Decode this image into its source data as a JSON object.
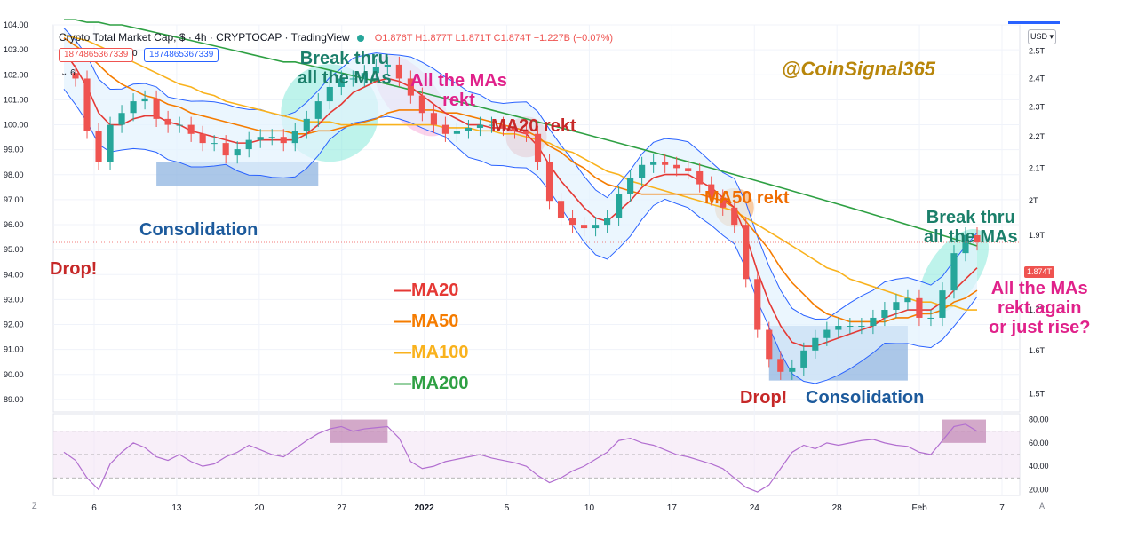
{
  "header": {
    "title": "Crypto Total Market Cap, $ · 4h · CRYPTOCAP · TradingView",
    "ohlc": {
      "o": "O1.876T",
      "h": "H1.877T",
      "l": "L1.871T",
      "c": "C1.874T",
      "chg": "−1.227B (−0.07%)"
    },
    "pill_left": "1874865367339",
    "pill_mid": "0",
    "pill_right": "1874865367339",
    "collapse": "⌄ 6"
  },
  "currency_button": "USD ▾",
  "last_price_label": "1.874T",
  "corner_left": "Z",
  "corner_right": "A",
  "annotations": {
    "handle": "@CoinSignal365",
    "break_thru_1": [
      "Break thru",
      "all the MAs"
    ],
    "all_mas_rekt": [
      "All the MAs",
      "rekt"
    ],
    "ma20_rekt": "MA20 rekt",
    "ma50_rekt": "MA50 rekt",
    "break_thru_2": [
      "Break thru",
      "all the MAs"
    ],
    "question": [
      "All the MAs",
      "rekt again",
      "or just rise?"
    ],
    "consolidation_1": "Consolidation",
    "consolidation_2": "Consolidation",
    "drop_1": "Drop!",
    "drop_2": "Drop!"
  },
  "legend": [
    {
      "label": "—MA20",
      "color": "#e53935"
    },
    {
      "label": "—MA50",
      "color": "#f57c00"
    },
    {
      "label": "—MA100",
      "color": "#f9b21d"
    },
    {
      "label": "—MA200",
      "color": "#2ea043"
    }
  ],
  "colors": {
    "up": "#26a69a",
    "down": "#ef5350",
    "bollinger": "#2962ff",
    "bollinger_fill": "#e3f2fd",
    "rsi": "#b26fd0",
    "rsi_band": "#f3e5f5",
    "handle": "#b8860b",
    "annotation_green": "#1b7f6a",
    "annotation_pink": "#e0218a",
    "annotation_red": "#c62828",
    "annotation_orange": "#ef6c00",
    "annotation_blue": "#1c5a9c"
  },
  "chart_data": [
    {
      "type": "line",
      "subtype": "candlestick",
      "title": "Crypto Total Market Cap, $ · 4h · CRYPTOCAP",
      "x_ticks": [
        "6",
        "13",
        "20",
        "27",
        "2022",
        "5",
        "10",
        "17",
        "24",
        "28",
        "Feb",
        "7"
      ],
      "y_left_ticks": [
        "104.00",
        "103.00",
        "102.00",
        "101.00",
        "100.00",
        "99.00",
        "98.00",
        "97.00",
        "96.00",
        "95.00",
        "94.00",
        "93.00",
        "92.00",
        "91.00",
        "90.00",
        "89.00"
      ],
      "y_left_range": [
        88.5,
        104.0
      ],
      "y_right_ticks": [
        "2.5T",
        "2.4T",
        "2.3T",
        "2.2T",
        "2.1T",
        "2T",
        "1.9T",
        "1.8T",
        "1.7T",
        "1.6T",
        "1.5T"
      ],
      "y_right_range": [
        1.46,
        2.6
      ],
      "y_scale": "log",
      "grid": true,
      "price_series_T": [
        2.42,
        2.4,
        2.22,
        2.12,
        2.24,
        2.28,
        2.32,
        2.33,
        2.26,
        2.24,
        2.24,
        2.21,
        2.18,
        2.18,
        2.14,
        2.16,
        2.19,
        2.2,
        2.2,
        2.18,
        2.22,
        2.26,
        2.32,
        2.37,
        2.4,
        2.4,
        2.42,
        2.44,
        2.45,
        2.4,
        2.34,
        2.28,
        2.24,
        2.21,
        2.22,
        2.23,
        2.24,
        2.24,
        2.23,
        2.22,
        2.21,
        2.12,
        2.0,
        1.95,
        1.93,
        1.92,
        1.93,
        1.95,
        2.02,
        2.07,
        2.11,
        2.12,
        2.11,
        2.1,
        2.09,
        2.05,
        2.01,
        1.98,
        1.93,
        1.78,
        1.65,
        1.58,
        1.55,
        1.56,
        1.6,
        1.63,
        1.65,
        1.66,
        1.66,
        1.66,
        1.68,
        1.7,
        1.72,
        1.73,
        1.68,
        1.68,
        1.75,
        1.85,
        1.9,
        1.88
      ],
      "ma20_T": [
        2.5,
        2.44,
        2.37,
        2.28,
        2.24,
        2.24,
        2.26,
        2.27,
        2.27,
        2.25,
        2.24,
        2.22,
        2.21,
        2.2,
        2.19,
        2.18,
        2.18,
        2.19,
        2.19,
        2.19,
        2.19,
        2.21,
        2.24,
        2.28,
        2.31,
        2.35,
        2.37,
        2.39,
        2.4,
        2.39,
        2.37,
        2.34,
        2.31,
        2.28,
        2.26,
        2.24,
        2.24,
        2.23,
        2.23,
        2.22,
        2.21,
        2.17,
        2.11,
        2.06,
        2.02,
        1.98,
        1.95,
        1.94,
        1.97,
        2.0,
        2.04,
        2.07,
        2.08,
        2.08,
        2.08,
        2.06,
        2.04,
        2.01,
        1.98,
        1.9,
        1.8,
        1.72,
        1.66,
        1.62,
        1.61,
        1.61,
        1.62,
        1.63,
        1.64,
        1.65,
        1.66,
        1.68,
        1.69,
        1.7,
        1.7,
        1.7,
        1.72,
        1.75,
        1.78,
        1.81
      ],
      "ma50_T": [
        2.55,
        2.52,
        2.49,
        2.45,
        2.41,
        2.38,
        2.36,
        2.34,
        2.33,
        2.31,
        2.3,
        2.28,
        2.27,
        2.26,
        2.25,
        2.24,
        2.23,
        2.22,
        2.22,
        2.22,
        2.21,
        2.21,
        2.22,
        2.22,
        2.23,
        2.24,
        2.25,
        2.26,
        2.28,
        2.29,
        2.29,
        2.29,
        2.29,
        2.28,
        2.28,
        2.27,
        2.26,
        2.25,
        2.24,
        2.23,
        2.22,
        2.2,
        2.17,
        2.15,
        2.12,
        2.1,
        2.07,
        2.05,
        2.04,
        2.03,
        2.02,
        2.02,
        2.02,
        2.02,
        2.02,
        2.02,
        2.01,
        2.0,
        1.98,
        1.94,
        1.9,
        1.86,
        1.81,
        1.77,
        1.74,
        1.71,
        1.69,
        1.68,
        1.67,
        1.67,
        1.67,
        1.67,
        1.68,
        1.68,
        1.69,
        1.69,
        1.7,
        1.72,
        1.73,
        1.75
      ],
      "ma100_T": [
        2.56,
        2.55,
        2.54,
        2.52,
        2.5,
        2.48,
        2.46,
        2.44,
        2.42,
        2.4,
        2.38,
        2.37,
        2.35,
        2.34,
        2.32,
        2.31,
        2.3,
        2.29,
        2.28,
        2.27,
        2.26,
        2.25,
        2.25,
        2.25,
        2.24,
        2.24,
        2.24,
        2.24,
        2.24,
        2.24,
        2.24,
        2.24,
        2.24,
        2.23,
        2.23,
        2.23,
        2.22,
        2.22,
        2.21,
        2.21,
        2.2,
        2.19,
        2.18,
        2.16,
        2.15,
        2.13,
        2.11,
        2.09,
        2.08,
        2.06,
        2.05,
        2.04,
        2.03,
        2.02,
        2.01,
        2.0,
        1.99,
        1.98,
        1.97,
        1.95,
        1.93,
        1.91,
        1.89,
        1.87,
        1.85,
        1.83,
        1.81,
        1.8,
        1.78,
        1.77,
        1.76,
        1.75,
        1.74,
        1.73,
        1.72,
        1.72,
        1.71,
        1.71,
        1.7,
        1.7
      ],
      "ma200_T": [
        2.62,
        2.62,
        2.61,
        2.61,
        2.6,
        2.6,
        2.59,
        2.58,
        2.57,
        2.56,
        2.55,
        2.54,
        2.53,
        2.52,
        2.51,
        2.5,
        2.49,
        2.48,
        2.47,
        2.46,
        2.46,
        2.45,
        2.44,
        2.43,
        2.42,
        2.41,
        2.4,
        2.39,
        2.38,
        2.37,
        2.36,
        2.35,
        2.34,
        2.33,
        2.32,
        2.31,
        2.3,
        2.29,
        2.28,
        2.27,
        2.26,
        2.25,
        2.24,
        2.23,
        2.22,
        2.21,
        2.2,
        2.19,
        2.18,
        2.17,
        2.16,
        2.15,
        2.14,
        2.13,
        2.12,
        2.11,
        2.1,
        2.09,
        2.08,
        2.07,
        2.06,
        2.05,
        2.04,
        2.03,
        2.02,
        2.01,
        2.0,
        1.99,
        1.98,
        1.97,
        1.96,
        1.95,
        1.94,
        1.93,
        1.92,
        1.91,
        1.9,
        1.89,
        1.88,
        1.87
      ],
      "series": [
        {
          "name": "MA20",
          "color": "#e53935"
        },
        {
          "name": "MA50",
          "color": "#f57c00"
        },
        {
          "name": "MA100",
          "color": "#f9b21d"
        },
        {
          "name": "MA200",
          "color": "#2ea043"
        }
      ]
    },
    {
      "type": "line",
      "subtype": "rsi",
      "y_ticks": [
        "80.00",
        "60.00",
        "40.00",
        "20.00"
      ],
      "y_range": [
        15,
        85
      ],
      "levels": [
        70,
        50,
        30
      ],
      "values": [
        52,
        45,
        30,
        20,
        42,
        52,
        60,
        56,
        48,
        45,
        50,
        44,
        40,
        42,
        48,
        52,
        58,
        54,
        50,
        48,
        55,
        62,
        68,
        72,
        74,
        70,
        72,
        73,
        74,
        64,
        44,
        38,
        40,
        44,
        46,
        48,
        50,
        47,
        45,
        43,
        40,
        32,
        26,
        30,
        36,
        40,
        46,
        52,
        62,
        64,
        60,
        58,
        54,
        50,
        48,
        45,
        42,
        38,
        30,
        22,
        18,
        24,
        38,
        52,
        58,
        55,
        60,
        58,
        60,
        62,
        63,
        60,
        58,
        57,
        52,
        50,
        62,
        74,
        76,
        70
      ]
    }
  ]
}
